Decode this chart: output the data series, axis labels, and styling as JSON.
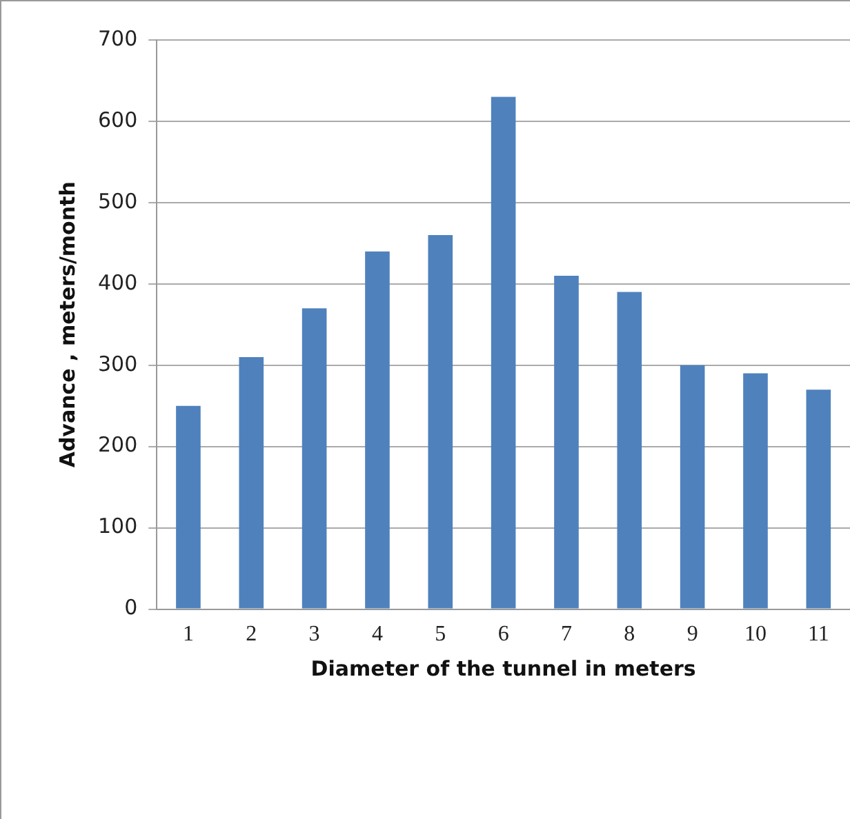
{
  "chart_data": {
    "type": "bar",
    "xlabel": "Diameter of the tunnel in meters",
    "ylabel": "Advance , meters/month",
    "categories": [
      "1",
      "2",
      "3",
      "4",
      "5",
      "6",
      "7",
      "8",
      "9",
      "10",
      "11"
    ],
    "values": [
      250,
      310,
      370,
      440,
      460,
      630,
      410,
      390,
      300,
      290,
      270
    ],
    "color": "#4f81bd",
    "ylim": [
      0,
      700
    ],
    "yticks": [
      0,
      100,
      200,
      300,
      400,
      500,
      600,
      700
    ],
    "grid": "y",
    "legend": false
  }
}
